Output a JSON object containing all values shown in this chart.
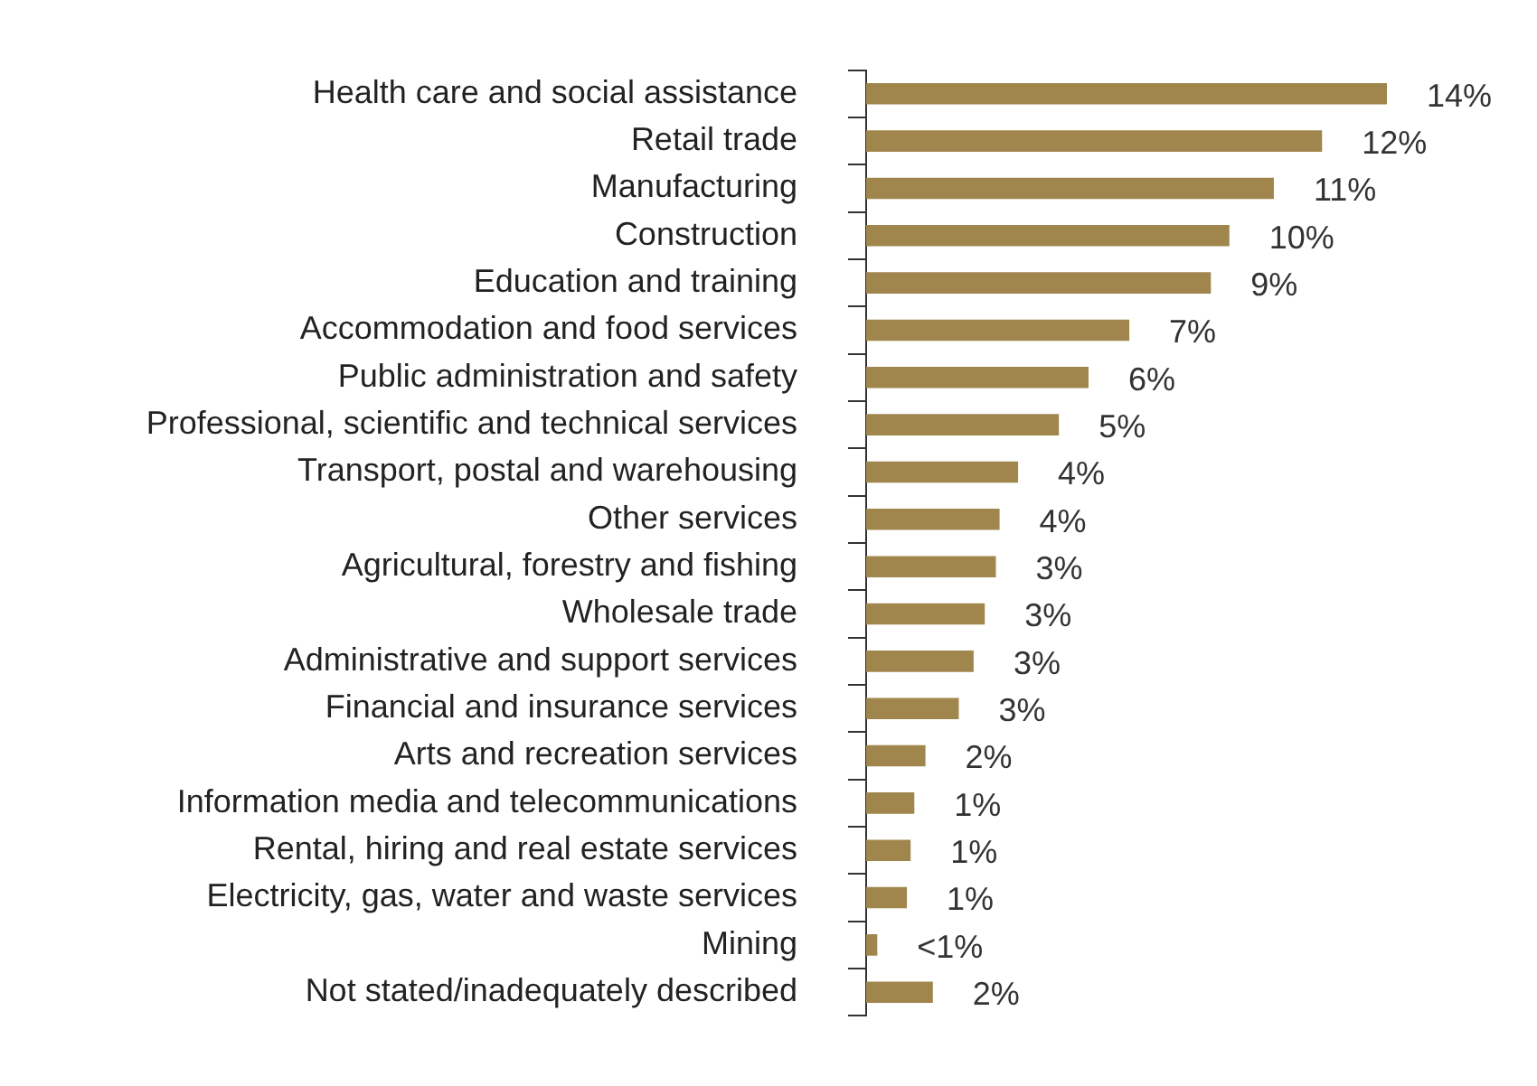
{
  "chart_data": {
    "type": "bar",
    "orientation": "horizontal",
    "categories": [
      "Health care and social assistance",
      "Retail trade",
      "Manufacturing",
      "Construction",
      "Education and training",
      "Accommodation and food services",
      "Public administration and safety",
      "Professional, scientific and technical services",
      "Transport, postal and warehousing",
      "Other services",
      "Agricultural, forestry and fishing",
      "Wholesale trade",
      "Administrative and support services",
      "Financial and insurance services",
      "Arts and recreation services",
      "Information media and telecommunications",
      "Rental, hiring and real estate services",
      "Electricity, gas, water and waste services",
      "Mining",
      "Not stated/inadequately described"
    ],
    "values": [
      14.05,
      12.3,
      11.0,
      9.8,
      9.3,
      7.1,
      6.0,
      5.2,
      4.1,
      3.6,
      3.5,
      3.2,
      2.9,
      2.5,
      1.6,
      1.3,
      1.2,
      1.1,
      0.3,
      1.8
    ],
    "value_labels": [
      "14%",
      "12%",
      "11%",
      "10%",
      "9%",
      "7%",
      "6%",
      "5%",
      "4%",
      "4%",
      "3%",
      "3%",
      "3%",
      "3%",
      "2%",
      "1%",
      "1%",
      "1%",
      "<1%",
      "2%"
    ],
    "color": "#a0864c",
    "legend": false,
    "grid": false,
    "tick_labels": "y"
  }
}
